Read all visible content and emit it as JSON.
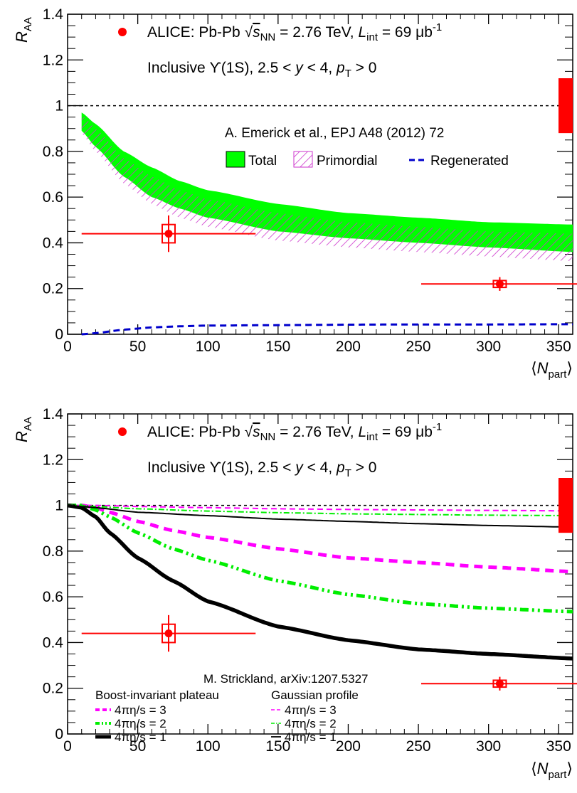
{
  "chart_data": [
    {
      "type": "line",
      "xlabel": "⟨N_part⟩",
      "ylabel": "R_AA",
      "xlim": [
        0,
        360
      ],
      "ylim": [
        0,
        1.4
      ],
      "xticks": [
        "0",
        "50",
        "100",
        "150",
        "200",
        "250",
        "300",
        "350"
      ],
      "yticks": [
        "0",
        "0.2",
        "0.4",
        "0.6",
        "0.8",
        "1",
        "1.2",
        "1.4"
      ],
      "reference_line": 1.0,
      "annotations": {
        "alice": "ALICE: Pb-Pb √s_NN = 2.76 TeV, L_int = 69 μb⁻¹",
        "selection": "Inclusive ϒ(1S), 2.5 < y < 4, p_T > 0",
        "model": "A. Emerick et al., EPJ A48 (2012) 72"
      },
      "legend": [
        {
          "label": "Total",
          "style": "green-band"
        },
        {
          "label": "Primordial",
          "style": "magenta-hatch"
        },
        {
          "label": "Regenerated",
          "style": "blue-dashed"
        }
      ],
      "data_points": [
        {
          "x": 72,
          "y": 0.44,
          "xerr_low": 62,
          "xerr_high": 62,
          "yerr": 0.08,
          "syserr": 0.04
        },
        {
          "x": 308,
          "y": 0.22,
          "xerr_low": 56,
          "xerr_high": 56,
          "yerr": 0.03,
          "syserr": 0.015
        }
      ],
      "global_syst_box": {
        "y_low": 0.88,
        "y_high": 1.12
      },
      "series": [
        {
          "name": "Total",
          "x": [
            10,
            20,
            40,
            60,
            80,
            100,
            150,
            200,
            250,
            300,
            360
          ],
          "low": [
            0.89,
            0.82,
            0.69,
            0.6,
            0.55,
            0.51,
            0.45,
            0.42,
            0.4,
            0.38,
            0.36
          ],
          "high": [
            0.97,
            0.92,
            0.8,
            0.73,
            0.67,
            0.63,
            0.57,
            0.53,
            0.51,
            0.49,
            0.48
          ]
        },
        {
          "name": "Primordial",
          "x": [
            10,
            20,
            40,
            60,
            80,
            100,
            150,
            200,
            250,
            300,
            360
          ],
          "low": [
            0.88,
            0.8,
            0.66,
            0.57,
            0.51,
            0.47,
            0.41,
            0.38,
            0.36,
            0.34,
            0.32
          ],
          "high": [
            0.96,
            0.9,
            0.77,
            0.69,
            0.63,
            0.59,
            0.53,
            0.49,
            0.47,
            0.45,
            0.44
          ]
        },
        {
          "name": "Regenerated",
          "x": [
            10,
            20,
            40,
            60,
            80,
            100,
            150,
            200,
            250,
            300,
            360
          ],
          "values": [
            0.0,
            0.005,
            0.02,
            0.03,
            0.035,
            0.038,
            0.04,
            0.042,
            0.043,
            0.043,
            0.044
          ]
        }
      ]
    },
    {
      "type": "line",
      "xlabel": "⟨N_part⟩",
      "ylabel": "R_AA",
      "xlim": [
        0,
        360
      ],
      "ylim": [
        0,
        1.4
      ],
      "xticks": [
        "0",
        "50",
        "100",
        "150",
        "200",
        "250",
        "300",
        "350"
      ],
      "yticks": [
        "0",
        "0.2",
        "0.4",
        "0.6",
        "0.8",
        "1",
        "1.2",
        "1.4"
      ],
      "reference_line": 1.0,
      "annotations": {
        "alice": "ALICE: Pb-Pb √s_NN = 2.76 TeV, L_int = 69 μb⁻¹",
        "selection": "Inclusive ϒ(1S), 2.5 < y < 4, p_T > 0",
        "model": "M. Strickland, arXiv:1207.5327"
      },
      "legend_groups": [
        {
          "title": "Boost-invariant plateau",
          "entries": [
            "4πη/s = 3",
            "4πη/s = 2",
            "4πη/s = 1"
          ]
        },
        {
          "title": "Gaussian profile",
          "entries": [
            "4πη/s = 3",
            "4πη/s = 2",
            "4πη/s = 1"
          ]
        }
      ],
      "data_points": [
        {
          "x": 72,
          "y": 0.44,
          "xerr_low": 62,
          "xerr_high": 62,
          "yerr": 0.08,
          "syserr": 0.04
        },
        {
          "x": 308,
          "y": 0.22,
          "xerr_low": 56,
          "xerr_high": 56,
          "yerr": 0.03,
          "syserr": 0.015
        }
      ],
      "global_syst_box": {
        "y_low": 0.88,
        "y_high": 1.12
      },
      "series": [
        {
          "name": "Boost-invariant plateau 4πη/s = 3",
          "style": "magenta-thick-dashed",
          "x": [
            0,
            10,
            20,
            30,
            50,
            75,
            100,
            150,
            200,
            250,
            300,
            360
          ],
          "values": [
            1.0,
            1.0,
            0.99,
            0.97,
            0.93,
            0.89,
            0.86,
            0.81,
            0.77,
            0.75,
            0.73,
            0.71
          ]
        },
        {
          "name": "Boost-invariant plateau 4πη/s = 2",
          "style": "green-thick-dashdot",
          "x": [
            0,
            10,
            20,
            30,
            50,
            75,
            100,
            150,
            200,
            250,
            300,
            360
          ],
          "values": [
            1.0,
            1.0,
            0.98,
            0.95,
            0.88,
            0.81,
            0.76,
            0.67,
            0.61,
            0.57,
            0.55,
            0.535
          ]
        },
        {
          "name": "Boost-invariant plateau 4πη/s = 1",
          "style": "black-thick-solid",
          "x": [
            0,
            10,
            20,
            30,
            50,
            75,
            100,
            150,
            200,
            250,
            300,
            360
          ],
          "values": [
            1.0,
            0.99,
            0.95,
            0.88,
            0.77,
            0.67,
            0.58,
            0.47,
            0.41,
            0.37,
            0.35,
            0.33
          ]
        },
        {
          "name": "Gaussian profile 4πη/s = 3",
          "style": "magenta-thin-dashed",
          "x": [
            0,
            10,
            20,
            50,
            100,
            150,
            200,
            250,
            300,
            360
          ],
          "values": [
            1.0,
            1.0,
            1.0,
            0.995,
            0.99,
            0.985,
            0.982,
            0.98,
            0.978,
            0.976
          ]
        },
        {
          "name": "Gaussian profile 4πη/s = 2",
          "style": "green-thin-dashdot",
          "x": [
            0,
            10,
            20,
            50,
            100,
            150,
            200,
            250,
            300,
            360
          ],
          "values": [
            1.0,
            1.0,
            0.995,
            0.985,
            0.975,
            0.968,
            0.963,
            0.96,
            0.957,
            0.955
          ]
        },
        {
          "name": "Gaussian profile 4πη/s = 1",
          "style": "black-thin-solid",
          "x": [
            0,
            10,
            20,
            50,
            100,
            150,
            200,
            250,
            300,
            360
          ],
          "values": [
            1.0,
            0.995,
            0.99,
            0.97,
            0.955,
            0.94,
            0.93,
            0.92,
            0.912,
            0.905
          ]
        }
      ]
    }
  ]
}
